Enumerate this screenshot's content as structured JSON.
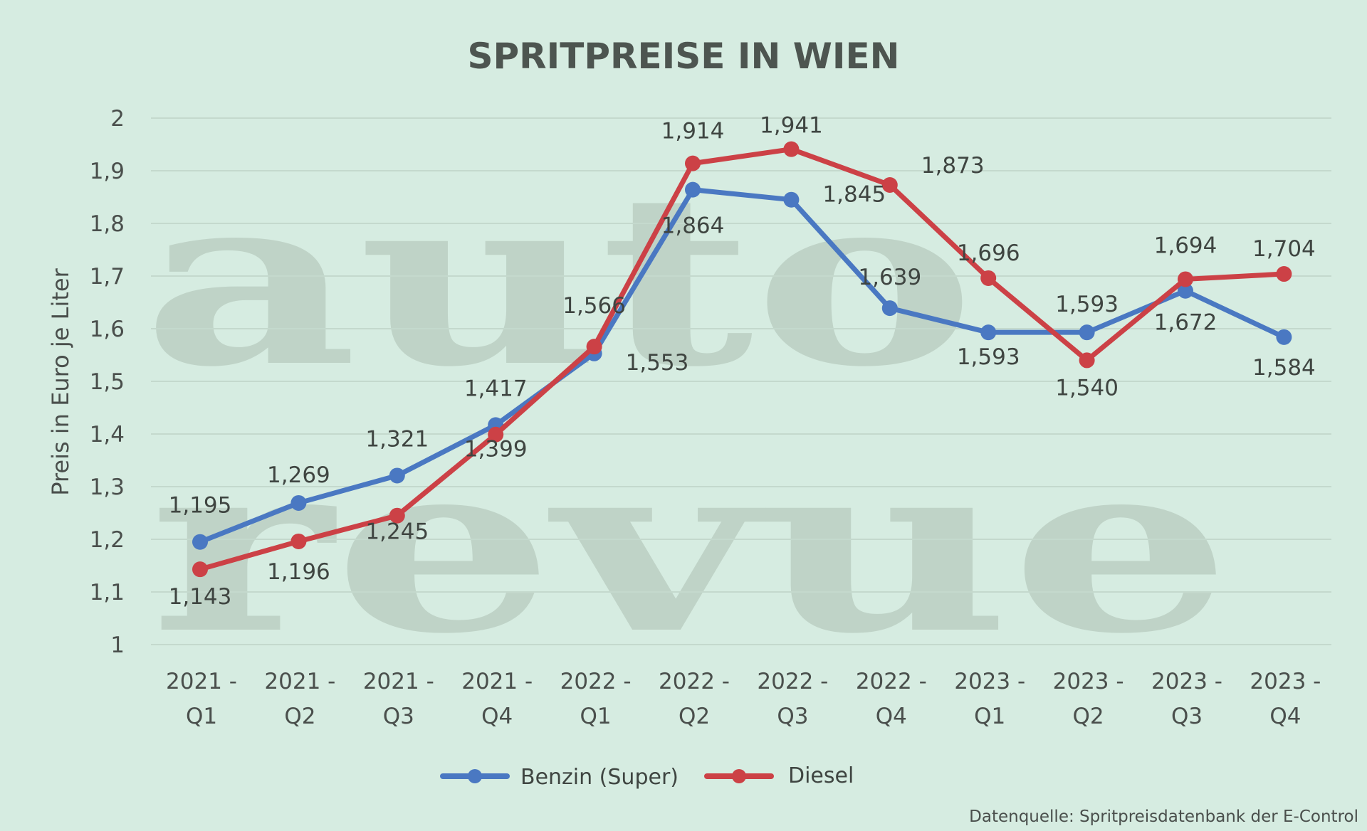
{
  "chart_data": {
    "type": "line",
    "title": "SPRITPREISE IN WIEN",
    "ylabel": "Preis in Euro je Liter",
    "xlabel": "",
    "ylim": [
      1,
      2
    ],
    "yticks": [
      "1",
      "1,1",
      "1,2",
      "1,3",
      "1,4",
      "1,5",
      "1,6",
      "1,7",
      "1,8",
      "1,9",
      "2"
    ],
    "categories": [
      [
        "2021 -",
        "Q1"
      ],
      [
        "2021 -",
        "Q2"
      ],
      [
        "2021 -",
        "Q3"
      ],
      [
        "2021 -",
        "Q4"
      ],
      [
        "2022 -",
        "Q1"
      ],
      [
        "2022 -",
        "Q2"
      ],
      [
        "2022 -",
        "Q3"
      ],
      [
        "2022 -",
        "Q4"
      ],
      [
        "2023 -",
        "Q1"
      ],
      [
        "2023 -",
        "Q2"
      ],
      [
        "2023 -",
        "Q3"
      ],
      [
        "2023 -",
        "Q4"
      ]
    ],
    "series": [
      {
        "name": "Benzin (Super)",
        "color": "#4a78c2",
        "values": [
          1.195,
          1.269,
          1.321,
          1.417,
          1.553,
          1.864,
          1.845,
          1.639,
          1.593,
          1.593,
          1.672,
          1.584
        ],
        "labels": [
          "1,195",
          "1,269",
          "1,321",
          "1,417",
          "1,553",
          "1,864",
          "1,845",
          "1,639",
          "1,593",
          "1,593",
          "1,672",
          "1,584"
        ]
      },
      {
        "name": "Diesel",
        "color": "#cc4146",
        "values": [
          1.143,
          1.196,
          1.245,
          1.399,
          1.566,
          1.914,
          1.941,
          1.873,
          1.696,
          1.54,
          1.694,
          1.704
        ],
        "labels": [
          "1,143",
          "1,196",
          "1,245",
          "1,399",
          "1,566",
          "1,914",
          "1,941",
          "1,873",
          "1,696",
          "1,540",
          "1,694",
          "1,704"
        ]
      }
    ],
    "grid": true,
    "legend": "bottom-center"
  },
  "watermark": [
    "auto",
    "revue"
  ],
  "source_note": "Datenquelle: Spritpreisdatenbank der E-Control"
}
